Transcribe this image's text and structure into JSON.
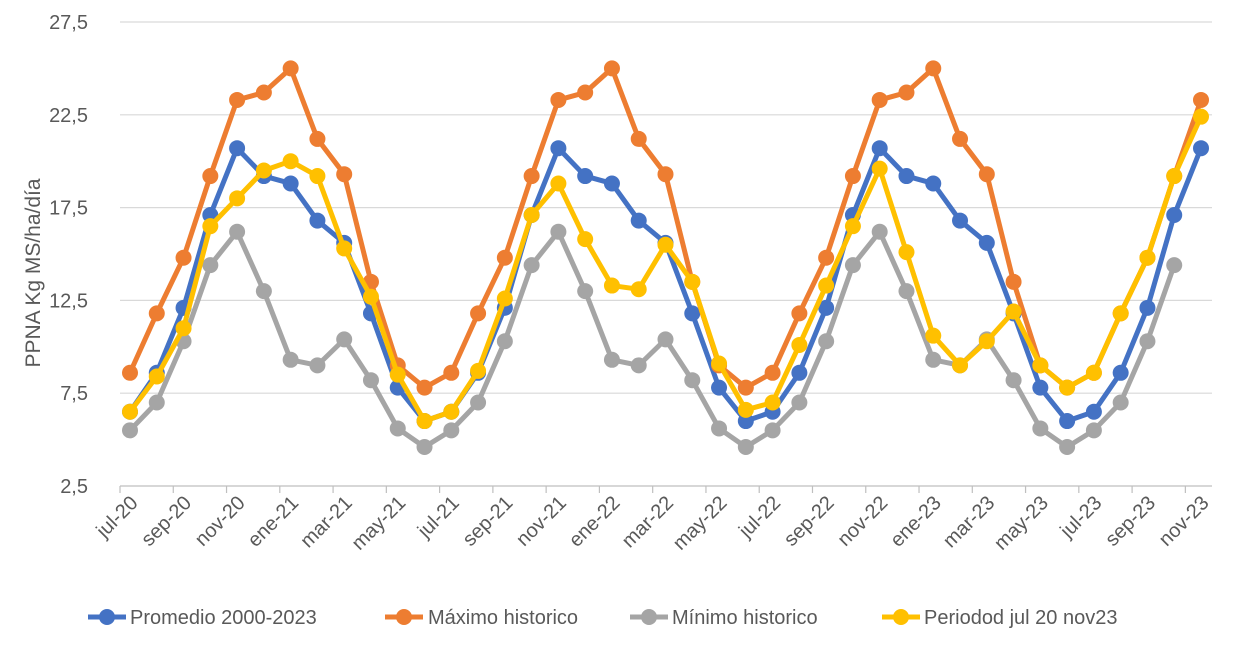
{
  "chart_data": {
    "type": "line",
    "title": "",
    "xlabel": "",
    "ylabel": "PPNA Kg MS/ha/día",
    "ylim": [
      2.5,
      27.5
    ],
    "yticks": [
      "2,5",
      "7,5",
      "12,5",
      "17,5",
      "22,5",
      "27,5"
    ],
    "ytick_values": [
      2.5,
      7.5,
      12.5,
      17.5,
      22.5,
      27.5
    ],
    "grid": "horizontal",
    "legend_position": "bottom",
    "x": [
      "jul-20",
      "ago-20",
      "sep-20",
      "oct-20",
      "nov-20",
      "dic-20",
      "ene-21",
      "feb-21",
      "mar-21",
      "abr-21",
      "may-21",
      "jun-21",
      "jul-21",
      "ago-21",
      "sep-21",
      "oct-21",
      "nov-21",
      "dic-21",
      "ene-22",
      "feb-22",
      "mar-22",
      "abr-22",
      "may-22",
      "jun-22",
      "jul-22",
      "ago-22",
      "sep-22",
      "oct-22",
      "nov-22",
      "dic-22",
      "ene-23",
      "feb-23",
      "mar-23",
      "abr-23",
      "may-23",
      "jun-23",
      "jul-23",
      "ago-23",
      "sep-23",
      "oct-23",
      "nov-23"
    ],
    "x_tick_labels": [
      "jul-20",
      "sep-20",
      "nov-20",
      "ene-21",
      "mar-21",
      "may-21",
      "jul-21",
      "sep-21",
      "nov-21",
      "ene-22",
      "mar-22",
      "may-22",
      "jul-22",
      "sep-22",
      "nov-22",
      "ene-23",
      "mar-23",
      "may-23",
      "jul-23",
      "sep-23",
      "nov-23"
    ],
    "series": [
      {
        "name": "Promedio 2000-2023",
        "color": "#4472C4",
        "values": [
          6.5,
          8.6,
          12.1,
          17.1,
          20.7,
          19.2,
          18.8,
          16.8,
          15.6,
          11.8,
          7.8,
          6.0,
          6.5,
          8.6,
          12.1,
          17.1,
          20.7,
          19.2,
          18.8,
          16.8,
          15.6,
          11.8,
          7.8,
          6.0,
          6.5,
          8.6,
          12.1,
          17.1,
          20.7,
          19.2,
          18.8,
          16.8,
          15.6,
          11.8,
          7.8,
          6.0,
          6.5,
          8.6,
          12.1,
          17.1,
          20.7
        ]
      },
      {
        "name": "Máximo historico",
        "color": "#ED7D31",
        "values": [
          8.6,
          11.8,
          14.8,
          19.2,
          23.3,
          23.7,
          25.0,
          21.2,
          19.3,
          13.5,
          9.0,
          7.8,
          8.6,
          11.8,
          14.8,
          19.2,
          23.3,
          23.7,
          25.0,
          21.2,
          19.3,
          13.5,
          9.0,
          7.8,
          8.6,
          11.8,
          14.8,
          19.2,
          23.3,
          23.7,
          25.0,
          21.2,
          19.3,
          13.5,
          9.0,
          7.8,
          8.6,
          11.8,
          14.8,
          19.2,
          23.3
        ]
      },
      {
        "name": "Mínimo historico",
        "color": "#A5A5A5",
        "values": [
          5.5,
          7.0,
          10.3,
          14.4,
          16.2,
          13.0,
          9.3,
          9.0,
          10.4,
          8.2,
          5.6,
          4.6,
          5.5,
          7.0,
          10.3,
          14.4,
          16.2,
          13.0,
          9.3,
          9.0,
          10.4,
          8.2,
          5.6,
          4.6,
          5.5,
          7.0,
          10.3,
          14.4,
          16.2,
          13.0,
          9.3,
          9.0,
          10.4,
          8.2,
          5.6,
          4.6,
          5.5,
          7.0,
          10.3,
          14.4,
          null
        ]
      },
      {
        "name": "Periodod jul 20 nov23",
        "color": "#FFC000",
        "values": [
          6.5,
          8.4,
          11.0,
          16.5,
          18.0,
          19.5,
          20.0,
          19.2,
          15.3,
          12.7,
          8.5,
          6.0,
          6.5,
          8.7,
          12.6,
          17.1,
          18.8,
          15.8,
          13.3,
          13.1,
          15.5,
          13.5,
          9.1,
          6.6,
          7.0,
          10.1,
          13.3,
          16.5,
          19.6,
          15.1,
          10.6,
          9.0,
          10.3,
          11.9,
          9.0,
          7.8,
          8.6,
          11.8,
          14.8,
          19.2,
          22.4
        ]
      }
    ]
  }
}
